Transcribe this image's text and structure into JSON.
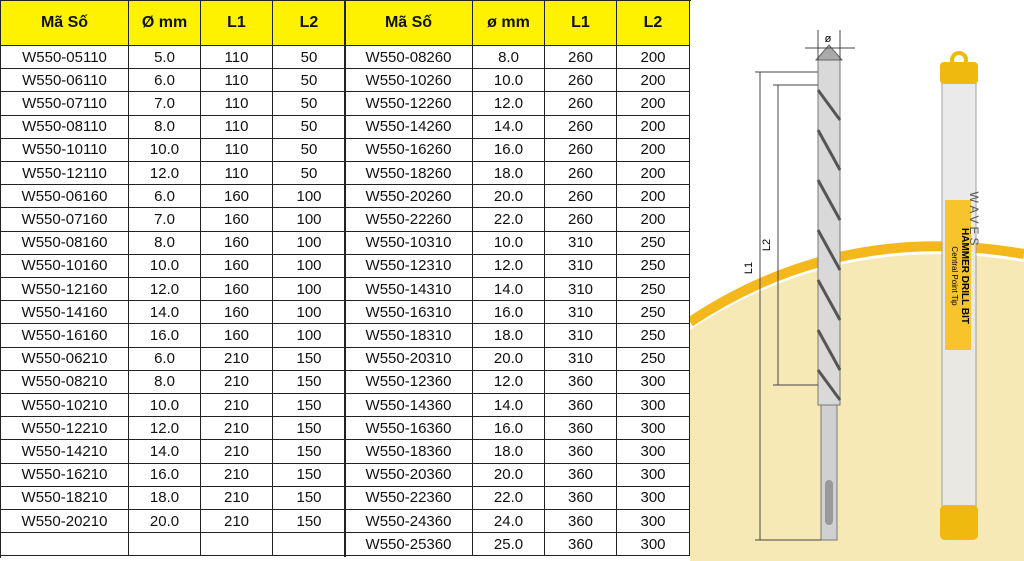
{
  "left_table": {
    "header": [
      "Mã Số",
      "Ø mm",
      "L1",
      "L2"
    ],
    "rows": [
      [
        "W550-05110",
        "5.0",
        "110",
        "50"
      ],
      [
        "W550-06110",
        "6.0",
        "110",
        "50"
      ],
      [
        "W550-07110",
        "7.0",
        "110",
        "50"
      ],
      [
        "W550-08110",
        "8.0",
        "110",
        "50"
      ],
      [
        "W550-10110",
        "10.0",
        "110",
        "50"
      ],
      [
        "W550-12110",
        "12.0",
        "110",
        "50"
      ],
      [
        "W550-06160",
        "6.0",
        "160",
        "100"
      ],
      [
        "W550-07160",
        "7.0",
        "160",
        "100"
      ],
      [
        "W550-08160",
        "8.0",
        "160",
        "100"
      ],
      [
        "W550-10160",
        "10.0",
        "160",
        "100"
      ],
      [
        "W550-12160",
        "12.0",
        "160",
        "100"
      ],
      [
        "W550-14160",
        "14.0",
        "160",
        "100"
      ],
      [
        "W550-16160",
        "16.0",
        "160",
        "100"
      ],
      [
        "W550-06210",
        "6.0",
        "210",
        "150"
      ],
      [
        "W550-08210",
        "8.0",
        "210",
        "150"
      ],
      [
        "W550-10210",
        "10.0",
        "210",
        "150"
      ],
      [
        "W550-12210",
        "12.0",
        "210",
        "150"
      ],
      [
        "W550-14210",
        "14.0",
        "210",
        "150"
      ],
      [
        "W550-16210",
        "16.0",
        "210",
        "150"
      ],
      [
        "W550-18210",
        "18.0",
        "210",
        "150"
      ],
      [
        "W550-20210",
        "20.0",
        "210",
        "150"
      ]
    ]
  },
  "right_table": {
    "header": [
      "Mã Số",
      "ø mm",
      "L1",
      "L2"
    ],
    "rows": [
      [
        "W550-08260",
        "8.0",
        "260",
        "200"
      ],
      [
        "W550-10260",
        "10.0",
        "260",
        "200"
      ],
      [
        "W550-12260",
        "12.0",
        "260",
        "200"
      ],
      [
        "W550-14260",
        "14.0",
        "260",
        "200"
      ],
      [
        "W550-16260",
        "16.0",
        "260",
        "200"
      ],
      [
        "W550-18260",
        "18.0",
        "260",
        "200"
      ],
      [
        "W550-20260",
        "20.0",
        "260",
        "200"
      ],
      [
        "W550-22260",
        "22.0",
        "260",
        "200"
      ],
      [
        "W550-10310",
        "10.0",
        "310",
        "250"
      ],
      [
        "W550-12310",
        "12.0",
        "310",
        "250"
      ],
      [
        "W550-14310",
        "14.0",
        "310",
        "250"
      ],
      [
        "W550-16310",
        "16.0",
        "310",
        "250"
      ],
      [
        "W550-18310",
        "18.0",
        "310",
        "250"
      ],
      [
        "W550-20310",
        "20.0",
        "310",
        "250"
      ],
      [
        "W550-12360",
        "12.0",
        "360",
        "300"
      ],
      [
        "W550-14360",
        "14.0",
        "360",
        "300"
      ],
      [
        "W550-16360",
        "16.0",
        "360",
        "300"
      ],
      [
        "W550-18360",
        "18.0",
        "360",
        "300"
      ],
      [
        "W550-20360",
        "20.0",
        "360",
        "300"
      ],
      [
        "W550-22360",
        "22.0",
        "360",
        "300"
      ],
      [
        "W550-24360",
        "24.0",
        "360",
        "300"
      ],
      [
        "W550-25360",
        "25.0",
        "360",
        "300"
      ]
    ]
  },
  "illustration": {
    "diameter_label": "ø",
    "l1_label": "L1",
    "l2_label": "L2",
    "brand": "WAVES",
    "product": "HAMMER DRILL BIT",
    "subtitle": "Central Point Tip"
  }
}
